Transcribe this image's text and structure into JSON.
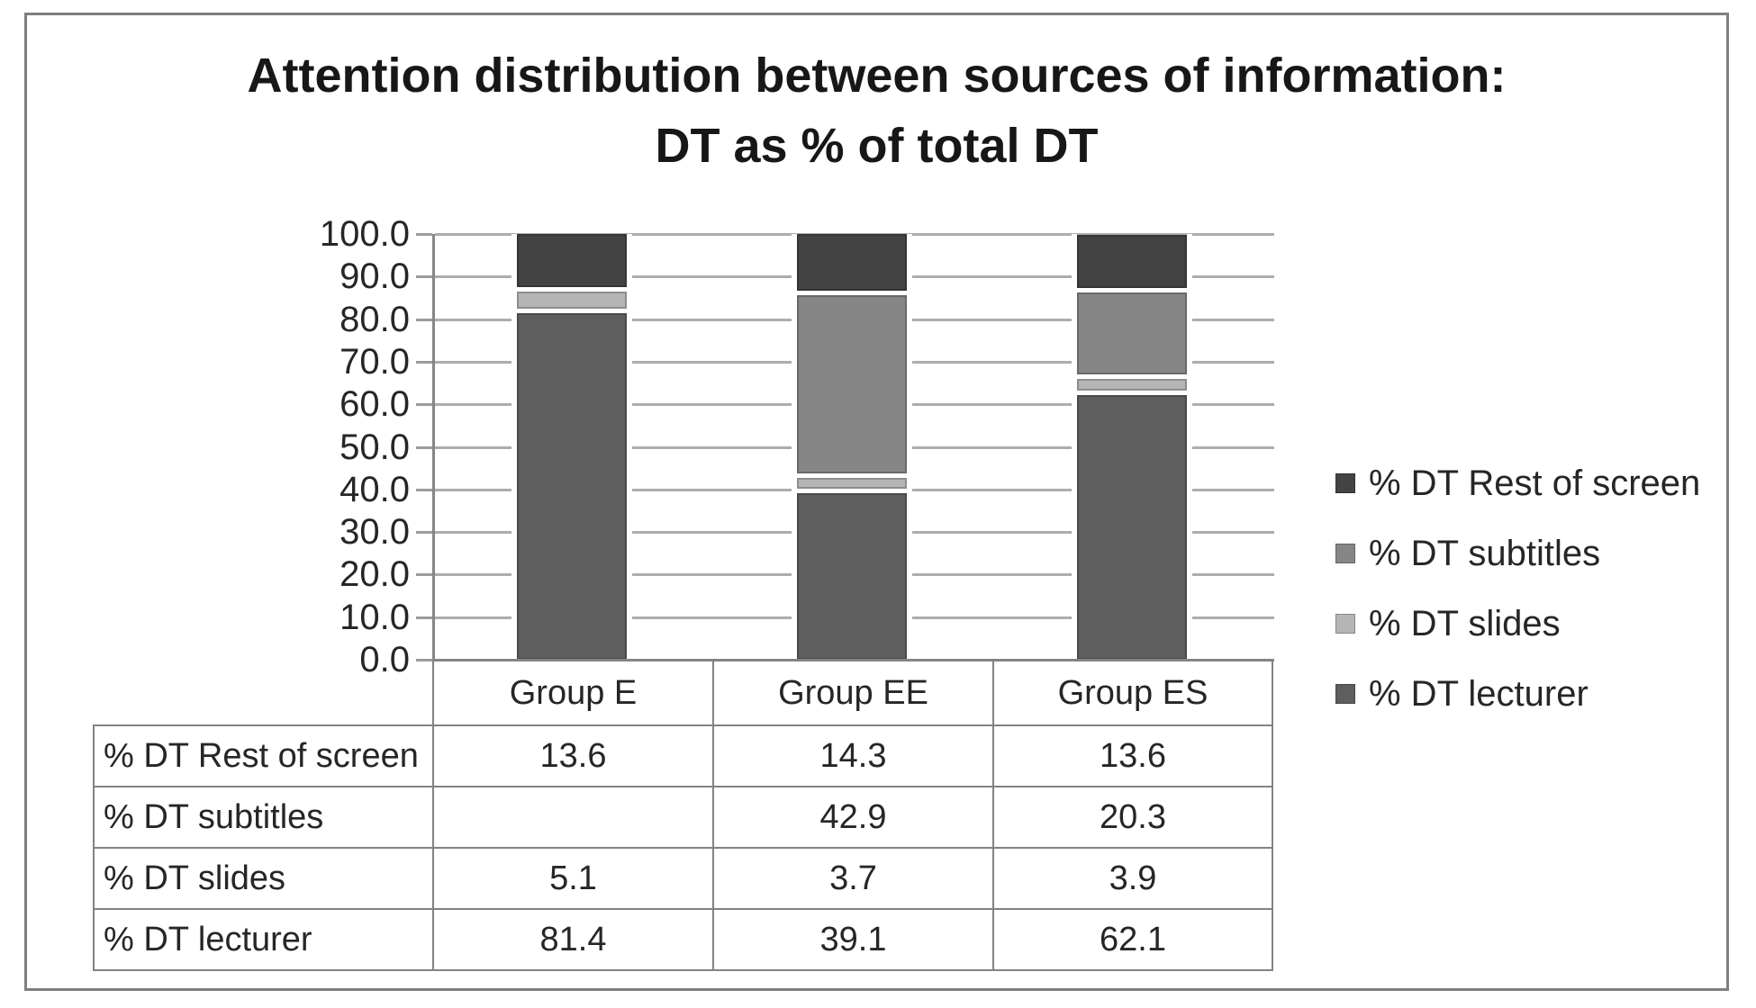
{
  "title": {
    "line1": "Attention distribution between sources of information:",
    "line2": "DT as % of total DT"
  },
  "chart_data": {
    "type": "bar",
    "stacked": true,
    "title": "Attention distribution between sources of information: DT as % of total DT",
    "categories": [
      "Group E",
      "Group EE",
      "Group ES"
    ],
    "series": [
      {
        "name": "% DT Rest of screen",
        "values": [
          13.6,
          14.3,
          13.6
        ],
        "color": "#434343"
      },
      {
        "name": "% DT subtitles",
        "values": [
          null,
          42.9,
          20.3
        ],
        "color": "#868686"
      },
      {
        "name": "% DT slides",
        "values": [
          5.1,
          3.7,
          3.9
        ],
        "color": "#b5b5b5"
      },
      {
        "name": "% DT lecturer",
        "values": [
          81.4,
          39.1,
          62.1
        ],
        "color": "#5e5e5e"
      }
    ],
    "stack_order_bottom_to_top": [
      "% DT lecturer",
      "% DT slides",
      "% DT subtitles",
      "% DT Rest of screen"
    ],
    "ylim": [
      0,
      100
    ],
    "ytick_labels": [
      "100.0",
      "90.0",
      "80.0",
      "70.0",
      "60.0",
      "50.0",
      "40.0",
      "30.0",
      "20.0",
      "10.0",
      "0.0"
    ],
    "grid": "horizontal",
    "legend_position": "right"
  },
  "legend": {
    "items": [
      {
        "label": "% DT Rest of screen",
        "color": "#434343"
      },
      {
        "label": "% DT subtitles",
        "color": "#868686"
      },
      {
        "label": "% DT slides",
        "color": "#b5b5b5"
      },
      {
        "label": "% DT lecturer",
        "color": "#5e5e5e"
      }
    ]
  },
  "table": {
    "column_headers": [
      "Group E",
      "Group EE",
      "Group ES"
    ],
    "rows": [
      {
        "label": "% DT Rest of screen",
        "cells": [
          "13.6",
          "14.3",
          "13.6"
        ]
      },
      {
        "label": "% DT subtitles",
        "cells": [
          "",
          "42.9",
          "20.3"
        ]
      },
      {
        "label": "% DT slides",
        "cells": [
          "5.1",
          "3.7",
          "3.9"
        ]
      },
      {
        "label": "% DT lecturer",
        "cells": [
          "81.4",
          "39.1",
          "62.1"
        ]
      }
    ]
  }
}
